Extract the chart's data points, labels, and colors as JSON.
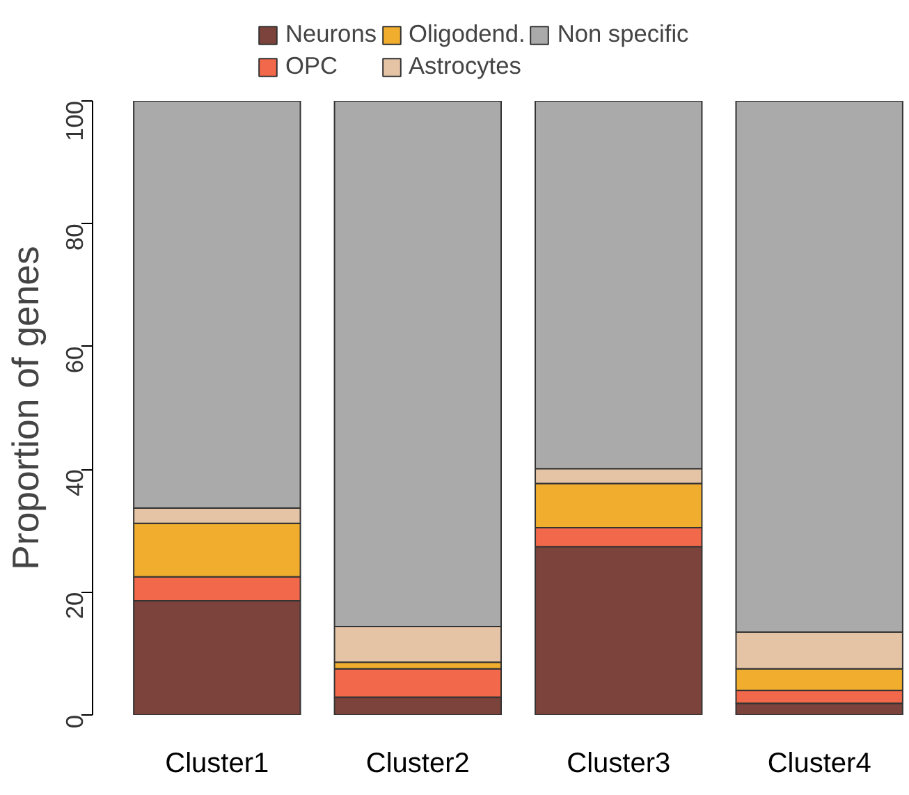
{
  "chart_data": {
    "type": "bar",
    "stacked": true,
    "ylabel": "Proportion of genes",
    "categories": [
      "Cluster1",
      "Cluster2",
      "Cluster3",
      "Cluster4"
    ],
    "series": [
      {
        "name": "Neurons",
        "color": "#7b433b",
        "values": [
          18.6,
          2.9,
          27.4,
          1.9
        ]
      },
      {
        "name": "OPC",
        "color": "#f2684a",
        "values": [
          3.9,
          4.6,
          3.1,
          2.1
        ]
      },
      {
        "name": "Oligodend.",
        "color": "#f1ae2e",
        "values": [
          8.7,
          1.1,
          7.2,
          3.5
        ]
      },
      {
        "name": "Astrocytes",
        "color": "#e5c4a6",
        "values": [
          2.5,
          5.8,
          2.4,
          6.0
        ]
      },
      {
        "name": "Non specific",
        "color": "#aaaaab",
        "values": [
          66.3,
          85.6,
          59.9,
          86.5
        ]
      }
    ],
    "ylim": [
      0,
      100
    ],
    "yticks": [
      0,
      20,
      40,
      60,
      80,
      100
    ],
    "grid": false,
    "legend": "top"
  }
}
